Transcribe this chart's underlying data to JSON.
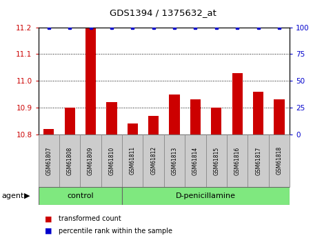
{
  "title": "GDS1394 / 1375632_at",
  "samples": [
    "GSM61807",
    "GSM61808",
    "GSM61809",
    "GSM61810",
    "GSM61811",
    "GSM61812",
    "GSM61813",
    "GSM61814",
    "GSM61815",
    "GSM61816",
    "GSM61817",
    "GSM61818"
  ],
  "red_values": [
    10.82,
    10.9,
    11.2,
    10.92,
    10.84,
    10.87,
    10.95,
    10.93,
    10.9,
    11.03,
    10.96,
    10.93
  ],
  "blue_values": [
    100,
    100,
    100,
    100,
    100,
    100,
    100,
    100,
    100,
    100,
    100,
    100
  ],
  "ylim_left": [
    10.8,
    11.2
  ],
  "ylim_right": [
    0,
    100
  ],
  "yticks_left": [
    10.8,
    10.9,
    11.0,
    11.1,
    11.2
  ],
  "yticks_right": [
    0,
    25,
    50,
    75,
    100
  ],
  "ctrl_count": 4,
  "bar_color": "#CC0000",
  "dot_color": "#0000CC",
  "sample_box_color": "#CCCCCC",
  "group_color": "#7FE87F",
  "plot_bg": "#FFFFFF",
  "title_fontsize": 9.5,
  "tick_fontsize": 7.5,
  "sample_fontsize": 5.5,
  "group_fontsize": 8,
  "legend_fontsize": 7,
  "agent_fontsize": 8,
  "bar_width": 0.5,
  "dot_size": 3.5
}
